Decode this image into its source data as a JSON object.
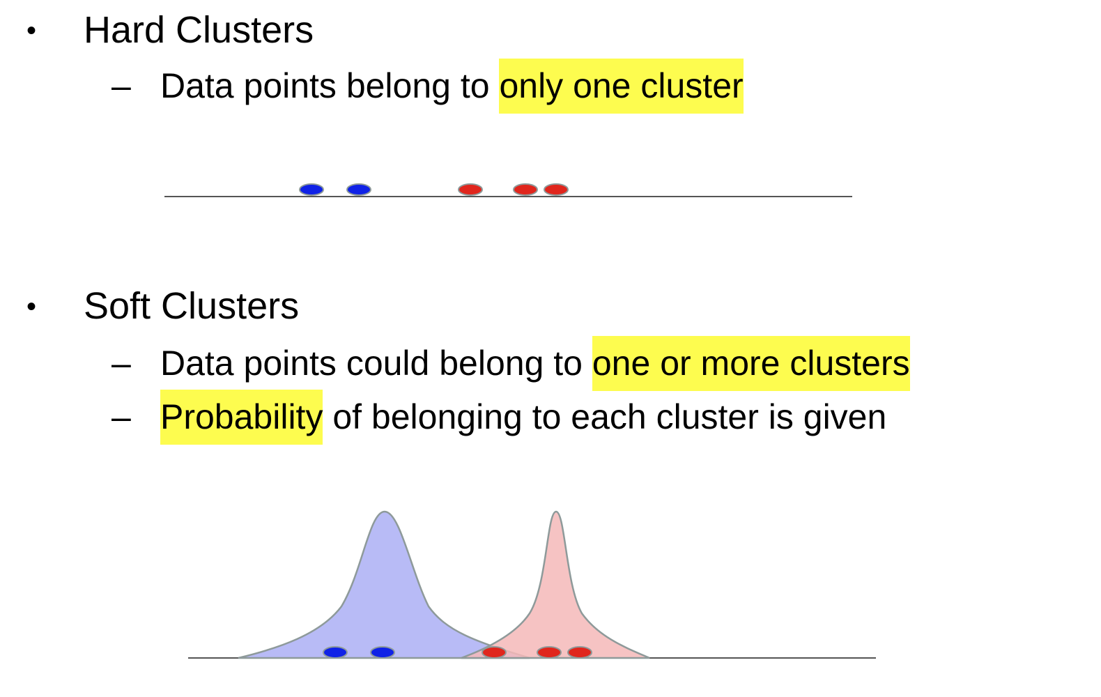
{
  "sections": [
    {
      "bullet": "•",
      "heading": "Hard Clusters",
      "items": [
        {
          "dash": "–",
          "before": "Data points belong to ",
          "highlight": "only one cluster",
          "after": ""
        }
      ]
    },
    {
      "bullet": "•",
      "heading": "Soft Clusters",
      "items": [
        {
          "dash": "–",
          "before": "Data points could belong to ",
          "highlight": "one or more clusters",
          "after": ""
        },
        {
          "dash": "–",
          "before": "",
          "highlight": "Probability",
          "after": " of belonging to each cluster is given"
        }
      ]
    }
  ],
  "colors": {
    "highlight": "#fdfc4f",
    "cluster_a_point": "#1022e6",
    "cluster_b_point": "#e0261d",
    "cluster_a_fill": "#b4b7f5",
    "cluster_b_fill": "#f4b9b9",
    "axis": "#555555",
    "curve_stroke": "#8e9a9a"
  }
}
